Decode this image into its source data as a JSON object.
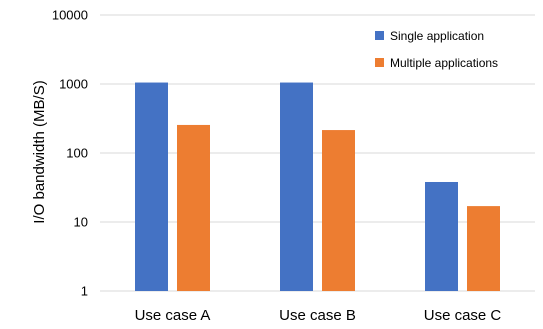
{
  "chart_data": {
    "type": "bar",
    "title": "",
    "xlabel": "",
    "ylabel": "I/O bandwidth (MB/S)",
    "yscale": "log",
    "ylim": [
      1,
      10000
    ],
    "yticks": [
      1,
      10,
      100,
      1000,
      10000
    ],
    "ytick_labels": [
      "1",
      "10",
      "100",
      "1000",
      "10000"
    ],
    "grid": true,
    "legend_position": "top-right",
    "categories": [
      "Use case A",
      "Use case B",
      "Use case C"
    ],
    "series": [
      {
        "name": "Single application",
        "color": "#4472c4",
        "values": [
          1050,
          1050,
          38
        ]
      },
      {
        "name": "Multiple applications",
        "color": "#ed7d31",
        "values": [
          255,
          215,
          17
        ]
      }
    ]
  }
}
